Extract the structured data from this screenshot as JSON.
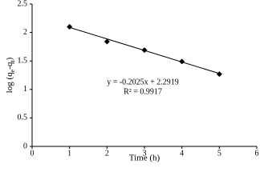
{
  "chart_data": {
    "type": "scatter",
    "xlabel": "Time (h)",
    "ylabel": [
      "log (q",
      "e",
      "-q",
      "t",
      ")"
    ],
    "x": [
      1,
      2,
      3,
      4,
      5
    ],
    "series": [
      {
        "values": [
          2.1,
          1.84,
          1.69,
          1.49,
          1.27
        ],
        "color": "#000000"
      }
    ],
    "trendline": {
      "x": [
        1,
        5
      ],
      "values": [
        2.0894,
        1.2794
      ],
      "color": "#000000"
    },
    "annotations": [
      "y = -0.2025x + 2.2919",
      "R² = 0.9917"
    ],
    "xlim": [
      0,
      6
    ],
    "xticks": [
      0,
      1,
      2,
      3,
      4,
      5,
      6
    ],
    "ylim": [
      0,
      2.5
    ],
    "yticks": [
      0,
      0.5,
      1,
      1.5,
      2,
      2.5
    ],
    "grid": false
  }
}
